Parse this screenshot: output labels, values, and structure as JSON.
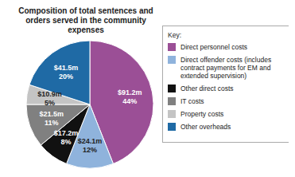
{
  "chart_data": {
    "type": "pie",
    "title": "Composition of total sentences and orders served in the community expenses",
    "legend_title": "Key:",
    "legend": "right",
    "data_labels": true,
    "categories": [
      "Direct personnel costs",
      "Direct offender costs (includes contract payments for EM and extended supervision)",
      "Other direct costs",
      "IT costs",
      "Property costs",
      "Other overheads"
    ],
    "values": [
      44,
      12,
      8,
      11,
      5,
      20
    ],
    "value_labels": [
      "44%",
      "12%",
      "8%",
      "11%",
      "5%",
      "20%"
    ],
    "amounts": [
      91.2,
      24.1,
      17.2,
      21.5,
      10.9,
      41.5
    ],
    "amount_labels": [
      "$91.2m",
      "$24.1m",
      "$17.2m",
      "$21.5m",
      "$10.9m",
      "$41.5m"
    ],
    "colors": [
      "#9b4f96",
      "#8fb3dc",
      "#111111",
      "#808080",
      "#c4c4c4",
      "#1f6aa5"
    ]
  }
}
